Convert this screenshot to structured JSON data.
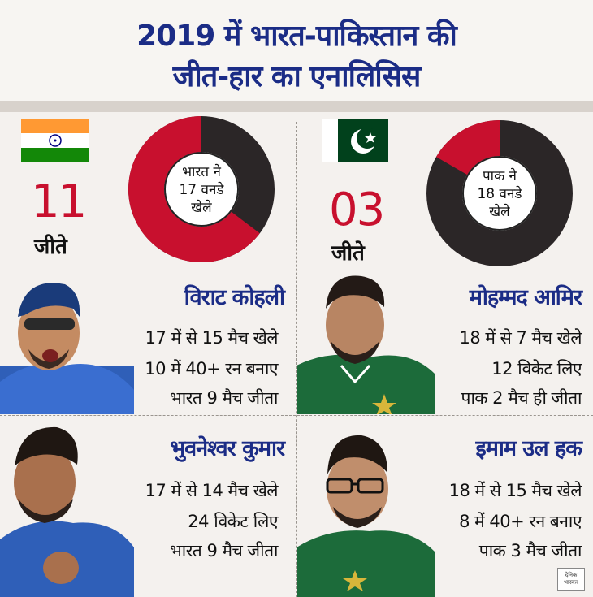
{
  "header": {
    "line1": "2019 में भारत-पाकिस्तान की",
    "line2": "जीत-हार का एनालिसिस"
  },
  "india": {
    "wins": "11",
    "won_label": "जीते",
    "donut_text": [
      "भारत ने",
      "17 वनडे",
      "खेले"
    ],
    "donut_win_fraction": 0.647
  },
  "pakistan": {
    "wins": "03",
    "won_label": "जीते",
    "donut_text": [
      "पाक ने",
      "18 वनडे",
      "खेले"
    ],
    "donut_win_fraction": 0.167
  },
  "players": [
    {
      "name": "विराट कोहली",
      "stats": [
        "17 में से 15 मैच खेले",
        "10 में 40+ रन बनाए",
        "भारत 9 मैच जीता"
      ]
    },
    {
      "name": "मोहम्मद आमिर",
      "stats": [
        "18 में से 7 मैच खेले",
        "12 विकेट लिए",
        "पाक 2 मैच ही जीता"
      ]
    },
    {
      "name": "भुवनेश्वर कुमार",
      "stats": [
        "17 में से 14 मैच खेले",
        "24 विकेट लिए",
        "भारत 9 मैच जीता"
      ]
    },
    {
      "name": "इमाम उल हक",
      "stats": [
        "18 में से 15 मैच खेले",
        "8 में 40+ रन बनाए",
        "पाक 3 मैच जीता"
      ]
    }
  ],
  "logo": {
    "line1": "दैनिक",
    "line2": "भास्कर"
  },
  "colors": {
    "title": "#1b2c86",
    "win": "#c8102e",
    "loss": "#2b2627"
  }
}
